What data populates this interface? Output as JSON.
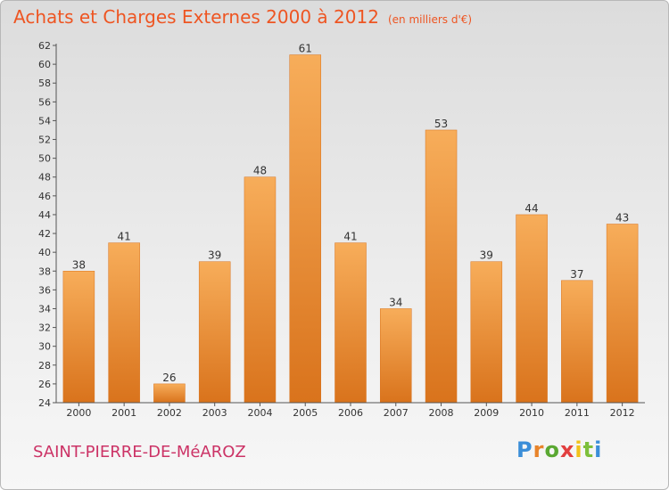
{
  "chart_data": {
    "type": "bar",
    "title": "Achats et Charges Externes 2000 à 2012",
    "subtitle": "(en milliers d'€)",
    "categories": [
      "2000",
      "2001",
      "2002",
      "2003",
      "2004",
      "2005",
      "2006",
      "2007",
      "2008",
      "2009",
      "2010",
      "2011",
      "2012"
    ],
    "values": [
      38,
      41,
      26,
      39,
      48,
      61,
      41,
      34,
      53,
      39,
      44,
      37,
      43
    ],
    "ylim": [
      24,
      62
    ],
    "yticks": [
      24,
      26,
      28,
      30,
      32,
      34,
      36,
      38,
      40,
      42,
      44,
      46,
      48,
      50,
      52,
      54,
      56,
      58,
      60,
      62
    ],
    "grid": false,
    "bar_color": "#f09a3e",
    "bar_color_light": "#f7ad5a",
    "bar_color_dark": "#d9731c"
  },
  "footer": {
    "commune": "SAINT-PIERRE-DE-MéAROZ",
    "logo_letters": [
      "P",
      "r",
      "o",
      "x",
      "i",
      "t",
      "i"
    ],
    "logo_colors": [
      "#3b8ed8",
      "#e8842a",
      "#5aa832",
      "#e23f3f",
      "#f2c21b",
      "#7dbf3a",
      "#3b8ed8"
    ]
  },
  "colors": {
    "title": "#ee5522",
    "commune": "#cc3366"
  }
}
